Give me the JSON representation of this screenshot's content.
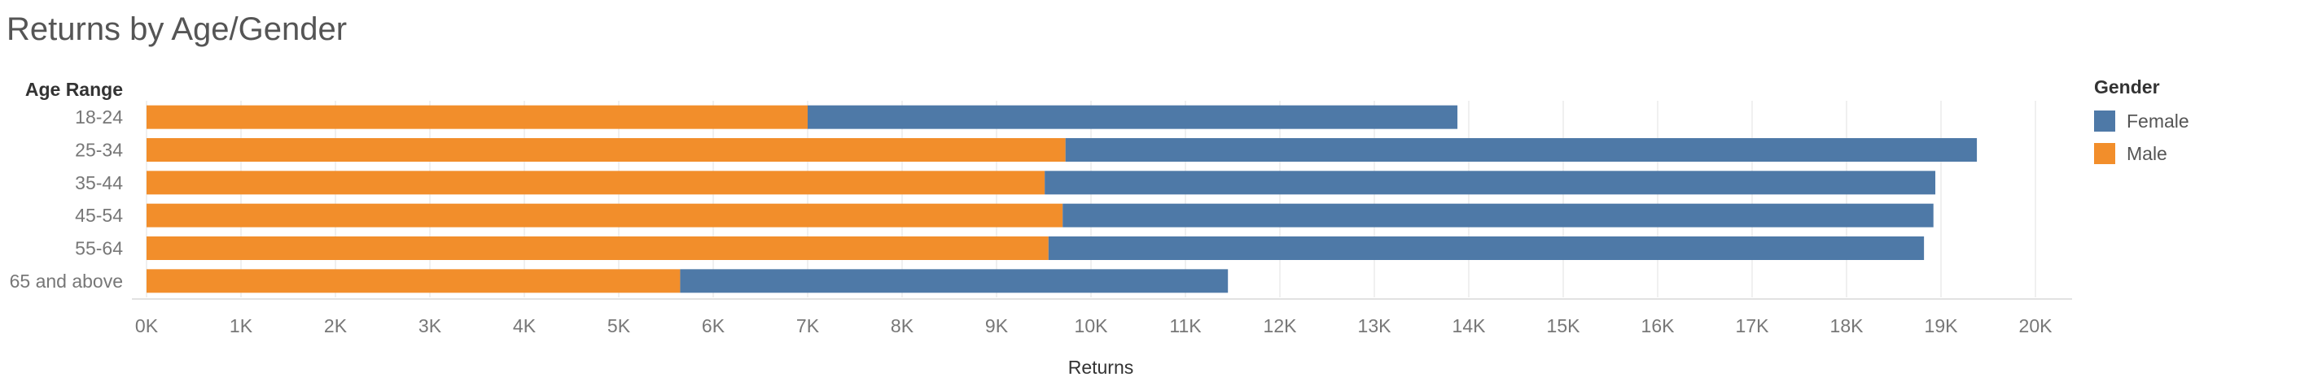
{
  "title": "Returns by Age/Gender",
  "chart_data": {
    "type": "bar",
    "orientation": "horizontal",
    "stacked": true,
    "title": "Returns by Age/Gender",
    "category_axis_label": "Age Range",
    "xlabel": "Returns",
    "categories": [
      "18-24",
      "25-34",
      "35-44",
      "45-54",
      "55-64",
      "65 and above"
    ],
    "series": [
      {
        "name": "Male",
        "color": "#F28E2B",
        "values": [
          7000,
          9730,
          9510,
          9700,
          9550,
          5650
        ]
      },
      {
        "name": "Female",
        "color": "#4E79A7",
        "values": [
          6880,
          9650,
          9430,
          9220,
          9270,
          5800
        ]
      }
    ],
    "xlim": [
      0,
      20400
    ],
    "xticks": [
      0,
      1000,
      2000,
      3000,
      4000,
      5000,
      6000,
      7000,
      8000,
      9000,
      10000,
      11000,
      12000,
      13000,
      14000,
      15000,
      16000,
      17000,
      18000,
      19000,
      20000
    ],
    "xtick_labels": [
      "0K",
      "1K",
      "2K",
      "3K",
      "4K",
      "5K",
      "6K",
      "7K",
      "8K",
      "9K",
      "10K",
      "11K",
      "12K",
      "13K",
      "14K",
      "15K",
      "16K",
      "17K",
      "18K",
      "19K",
      "20K"
    ],
    "grid": true,
    "legend": {
      "title": "Gender",
      "position": "right",
      "items": [
        {
          "label": "Female",
          "color": "#4E79A7"
        },
        {
          "label": "Male",
          "color": "#F28E2B"
        }
      ]
    }
  }
}
